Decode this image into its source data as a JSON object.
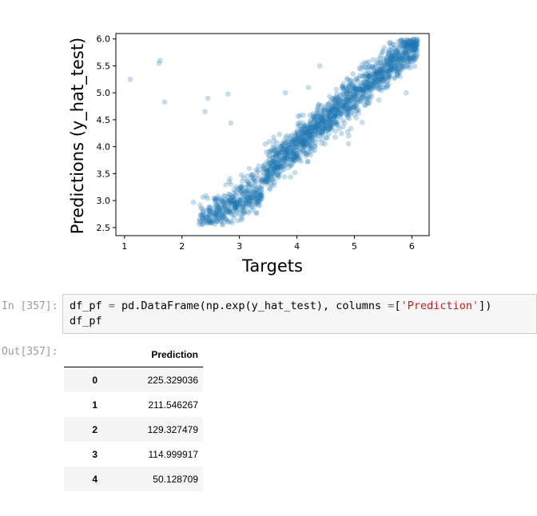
{
  "chart_data": {
    "type": "scatter",
    "xlabel": "Targets",
    "ylabel": "Predictions (y_hat_test)",
    "xlim": [
      0.85,
      6.3
    ],
    "ylim": [
      2.35,
      6.1
    ],
    "xticks": [
      1,
      2,
      3,
      4,
      5,
      6
    ],
    "yticks": [
      2.5,
      3.0,
      3.5,
      4.0,
      4.5,
      5.0,
      5.5,
      6.0
    ],
    "ytick_labels": [
      "2.5",
      "3.0",
      "3.5",
      "4.0",
      "4.5",
      "5.0",
      "5.5",
      "6.0"
    ],
    "point_color": "#1f77b4",
    "point_alpha": 0.25,
    "outliers": [
      [
        1.1,
        5.25
      ],
      [
        1.6,
        5.55
      ],
      [
        1.62,
        5.6
      ],
      [
        1.7,
        4.83
      ],
      [
        2.45,
        4.9
      ],
      [
        2.4,
        4.65
      ],
      [
        2.8,
        4.98
      ],
      [
        2.85,
        4.44
      ],
      [
        2.2,
        2.97
      ],
      [
        2.3,
        2.65
      ],
      [
        3.8,
        5.0
      ],
      [
        4.4,
        5.5
      ],
      [
        4.2,
        5.1
      ],
      [
        5.9,
        5.0
      ],
      [
        4.9,
        4.2
      ]
    ],
    "trend": {
      "x_range": [
        2.3,
        6.1
      ],
      "slope": 0.93,
      "intercept": 0.3,
      "spread": 0.18
    },
    "num_points": 1800
  },
  "cell": {
    "in_prompt": "In [357]:",
    "out_prompt": "Out[357]:",
    "code_line1": {
      "p1": "df_pf ",
      "p2": "=",
      "p3": " pd.DataFrame(np.exp(y_hat_test), columns ",
      "p4": "=",
      "p5": "[",
      "p6": "'Prediction'",
      "p7": "])"
    },
    "code_line2": "df_pf"
  },
  "output_table": {
    "header": "Prediction",
    "rows": [
      {
        "index": "0",
        "value": "225.329036"
      },
      {
        "index": "1",
        "value": "211.546267"
      },
      {
        "index": "2",
        "value": "129.327479"
      },
      {
        "index": "3",
        "value": "114.999917"
      },
      {
        "index": "4",
        "value": "50.128709"
      },
      {
        "index": "",
        "value": ""
      }
    ]
  }
}
